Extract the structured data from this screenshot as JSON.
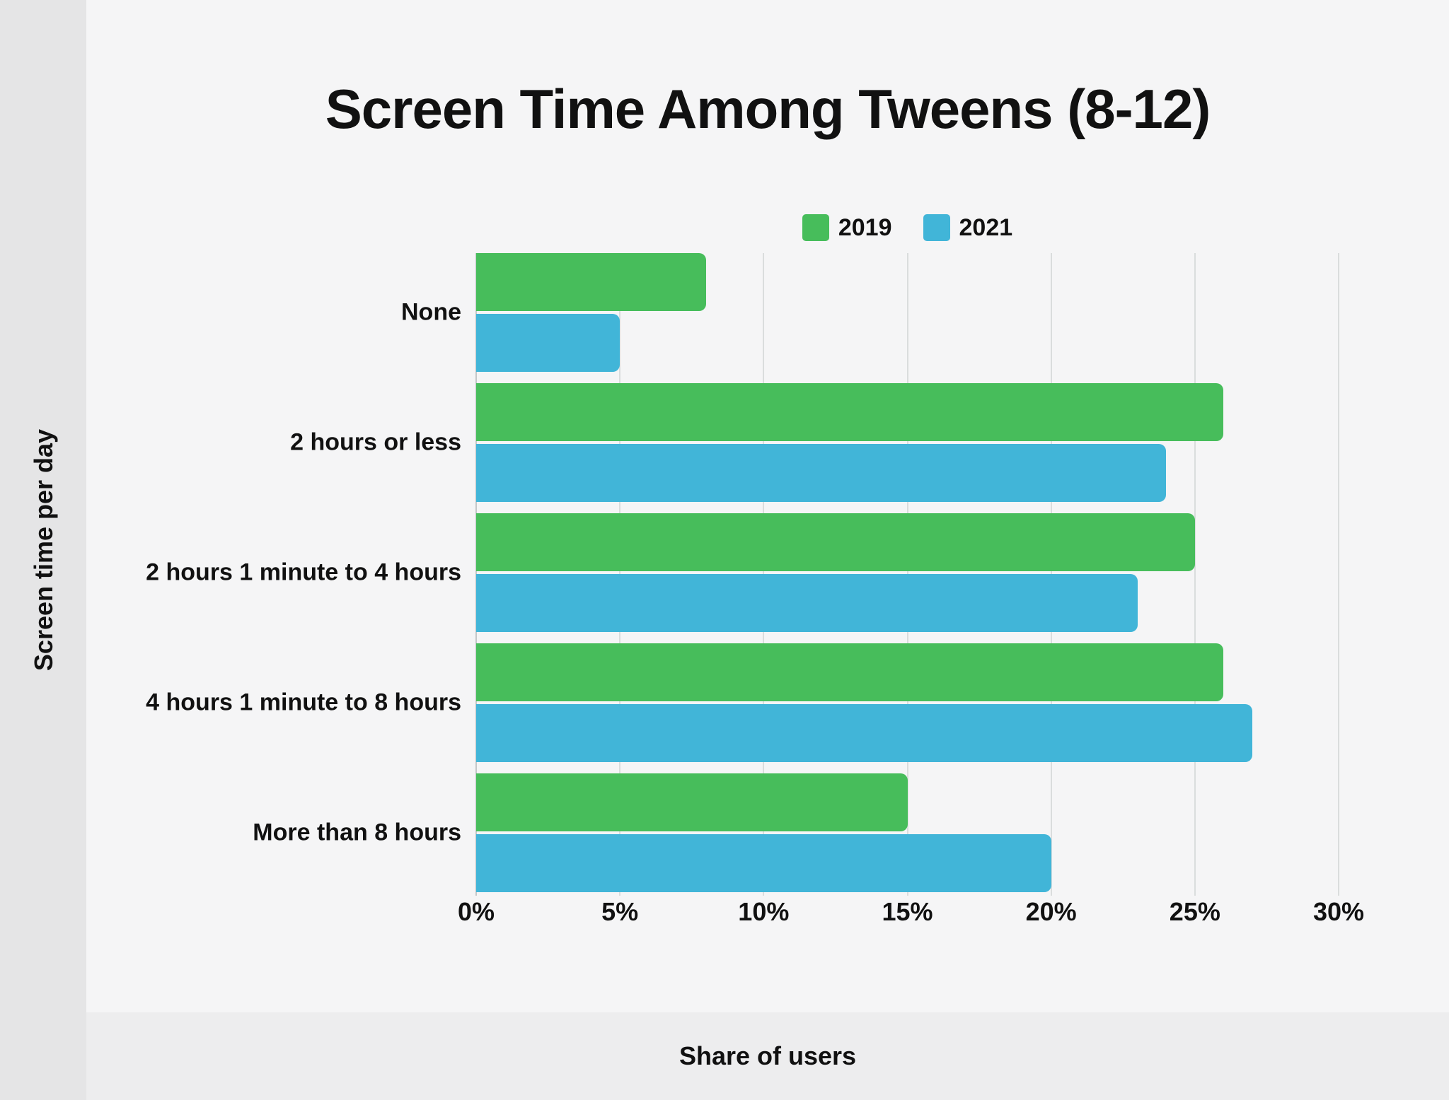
{
  "colors": {
    "series_2019": "#47bd5b",
    "series_2021": "#41b5d8",
    "background": "#f5f5f6",
    "left_panel": "#e5e5e6",
    "bottom_panel": "#ededee",
    "gridline": "#dadddd",
    "axis_line": "#c3c7c8",
    "text": "#111111"
  },
  "chart_data": {
    "type": "bar",
    "orientation": "horizontal",
    "title": "Screen Time Among Tweens (8-12)",
    "categories": [
      "None",
      "2 hours or less",
      "2 hours 1 minute to 4 hours",
      "4 hours 1 minute to 8 hours",
      "More than 8 hours"
    ],
    "series": [
      {
        "name": "2019",
        "color": "#47bd5b",
        "values": [
          8,
          26,
          25,
          26,
          15
        ]
      },
      {
        "name": "2021",
        "color": "#41b5d8",
        "values": [
          5,
          24,
          23,
          27,
          20
        ]
      }
    ],
    "xlabel": "Share of users",
    "ylabel": "Screen time per day",
    "xlim": [
      0,
      30
    ],
    "xtick_values": [
      0,
      5,
      10,
      15,
      20,
      25,
      30
    ],
    "xtick_labels": [
      "0%",
      "5%",
      "10%",
      "15%",
      "20%",
      "25%",
      "30%"
    ],
    "grid": "vertical",
    "legend_position": "top-center"
  }
}
